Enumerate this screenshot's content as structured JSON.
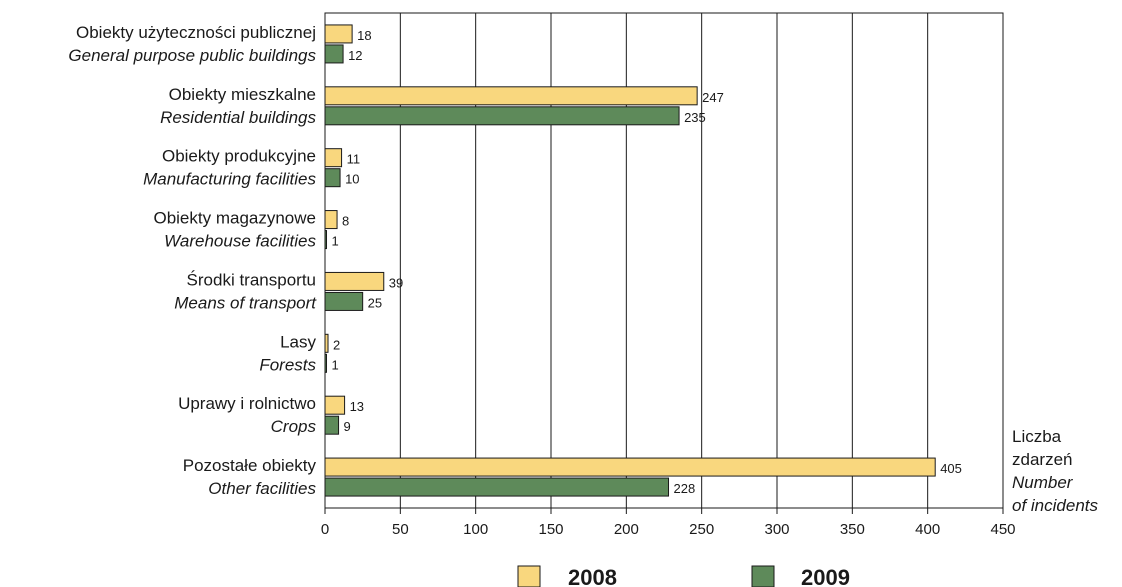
{
  "chart_data": {
    "type": "bar",
    "orientation": "horizontal",
    "categories": [
      {
        "pl": "Obiekty użyteczności publicznej",
        "en": "General purpose public buildings"
      },
      {
        "pl": "Obiekty mieszkalne",
        "en": "Residential buildings"
      },
      {
        "pl": "Obiekty produkcyjne",
        "en": "Manufacturing facilities"
      },
      {
        "pl": "Obiekty magazynowe",
        "en": "Warehouse facilities"
      },
      {
        "pl": "Środki transportu",
        "en": "Means of transport"
      },
      {
        "pl": "Lasy",
        "en": "Forests"
      },
      {
        "pl": "Uprawy i rolnictwo",
        "en": "Crops"
      },
      {
        "pl": "Pozostałe obiekty",
        "en": "Other facilities"
      }
    ],
    "series": [
      {
        "name": "2008",
        "color": "#f9d77e",
        "values": [
          18,
          247,
          11,
          8,
          39,
          2,
          13,
          405
        ]
      },
      {
        "name": "2009",
        "color": "#5e8a5a",
        "values": [
          12,
          235,
          10,
          1,
          25,
          1,
          9,
          228
        ]
      }
    ],
    "xlim": [
      0,
      450
    ],
    "xticks": [
      0,
      50,
      100,
      150,
      200,
      250,
      300,
      350,
      400,
      450
    ],
    "xlabel_lines": [
      "Liczba",
      "zdarzeń",
      "Number",
      "of incidents"
    ],
    "grid": "vertical",
    "legend_position": "bottom"
  }
}
